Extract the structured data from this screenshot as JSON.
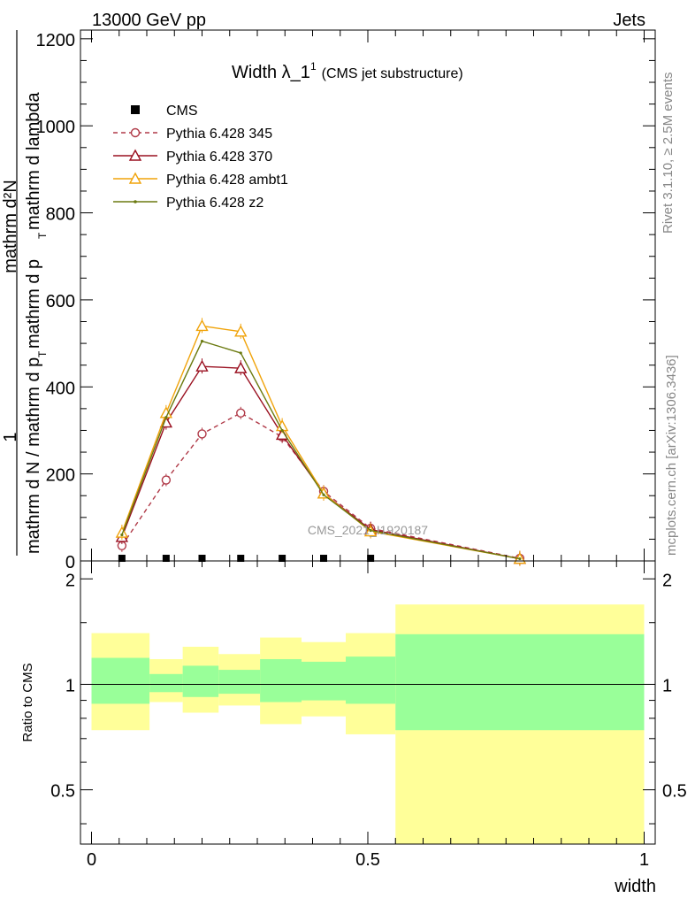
{
  "header": {
    "left": "13000 GeV pp",
    "right": "Jets"
  },
  "side_labels": {
    "rivet": "Rivet 3.1.10, ≥ 2.5M events",
    "mcplots": "mcplots.cern.ch [arXiv:1306.3436]"
  },
  "watermark": "CMS_2021_I1920187",
  "chart_data": [
    {
      "type": "line",
      "title": "Width λ_1¹ (CMS jet substructure)",
      "title_main": "Width λ_1",
      "title_sup": "1",
      "title_sub": "(CMS jet substructure)",
      "ylabel_numerator": "1",
      "ylabel_denominator_line1": "mathrm d N / mathrm d p",
      "ylabel_denominator_line2": "T",
      "ylabel_denominator_line3": "mathrm d p",
      "ylabel_denominator_line4": "T",
      "ylabel_denominator_line5": "mathrm d lambda",
      "ylabel_top": "mathrm d²N",
      "ylabel_full": "1 / (mathrm d N / mathrm d p_T) · mathrm d²N / (mathrm d p_T mathrm d lambda)",
      "xlim": [
        -0.02,
        1.02
      ],
      "ylim": [
        0,
        1220
      ],
      "yticks": [
        0,
        200,
        400,
        600,
        800,
        1000,
        1200
      ],
      "ytick_labels": [
        "0",
        "200",
        "400",
        "600",
        "800",
        "1000",
        "1200"
      ],
      "grid": false,
      "legend_position": "top-left",
      "series": [
        {
          "name": "CMS",
          "color": "#000000",
          "marker": "square",
          "style": "points",
          "x": [
            0.055,
            0.135,
            0.2,
            0.27,
            0.345,
            0.42,
            0.505
          ],
          "y": [
            2,
            2,
            2,
            2,
            2,
            2,
            2
          ]
        },
        {
          "name": "Pythia 6.428 345",
          "color": "#b03a48",
          "marker": "circle-open",
          "style": "dashed",
          "x": [
            0.055,
            0.135,
            0.2,
            0.27,
            0.345,
            0.42,
            0.505,
            0.775
          ],
          "y": [
            35,
            186,
            292,
            340,
            285,
            160,
            75,
            6
          ]
        },
        {
          "name": "Pythia 6.428 370",
          "color": "#9a1020",
          "marker": "triangle-open",
          "style": "solid",
          "x": [
            0.055,
            0.135,
            0.2,
            0.27,
            0.345,
            0.42,
            0.505,
            0.775
          ],
          "y": [
            55,
            318,
            447,
            443,
            290,
            155,
            72,
            5
          ]
        },
        {
          "name": "Pythia 6.428 ambt1",
          "color": "#f0a30a",
          "marker": "triangle-open",
          "style": "solid",
          "x": [
            0.055,
            0.135,
            0.2,
            0.27,
            0.345,
            0.42,
            0.505,
            0.775
          ],
          "y": [
            65,
            340,
            540,
            527,
            310,
            155,
            68,
            5
          ]
        },
        {
          "name": "Pythia 6.428 z2",
          "color": "#6b7a10",
          "marker": "dot",
          "style": "solid",
          "x": [
            0.055,
            0.135,
            0.2,
            0.27,
            0.345,
            0.42,
            0.505,
            0.775
          ],
          "y": [
            60,
            330,
            505,
            478,
            300,
            152,
            70,
            5
          ]
        }
      ]
    },
    {
      "type": "area",
      "ylabel": "Ratio to CMS",
      "xlabel": "width",
      "xlim": [
        -0.02,
        1.02
      ],
      "ylim": [
        0.35,
        2.25
      ],
      "xticks": [
        0,
        0.5,
        1
      ],
      "xtick_labels": [
        "0",
        "0.5",
        "1"
      ],
      "yticks": [
        0.5,
        1,
        2
      ],
      "ytick_labels": [
        "0.5",
        "1",
        "2"
      ],
      "reference_line": 1,
      "bins": [
        {
          "x0": 0.0,
          "x1": 0.105,
          "inner": [
            0.88,
            1.19
          ],
          "outer": [
            0.74,
            1.4
          ]
        },
        {
          "x0": 0.105,
          "x1": 0.165,
          "inner": [
            0.95,
            1.07
          ],
          "outer": [
            0.89,
            1.18
          ]
        },
        {
          "x0": 0.165,
          "x1": 0.23,
          "inner": [
            0.92,
            1.13
          ],
          "outer": [
            0.83,
            1.28
          ]
        },
        {
          "x0": 0.23,
          "x1": 0.305,
          "inner": [
            0.94,
            1.1
          ],
          "outer": [
            0.87,
            1.22
          ]
        },
        {
          "x0": 0.305,
          "x1": 0.38,
          "inner": [
            0.89,
            1.18
          ],
          "outer": [
            0.77,
            1.36
          ]
        },
        {
          "x0": 0.38,
          "x1": 0.46,
          "inner": [
            0.9,
            1.16
          ],
          "outer": [
            0.81,
            1.32
          ]
        },
        {
          "x0": 0.46,
          "x1": 0.55,
          "inner": [
            0.88,
            1.2
          ],
          "outer": [
            0.72,
            1.4
          ]
        },
        {
          "x0": 0.55,
          "x1": 1.0,
          "inner": [
            0.74,
            1.39
          ],
          "outer": [
            0.35,
            1.69
          ]
        }
      ],
      "inner_color": "#99ff99",
      "outer_color": "#ffff99"
    }
  ]
}
